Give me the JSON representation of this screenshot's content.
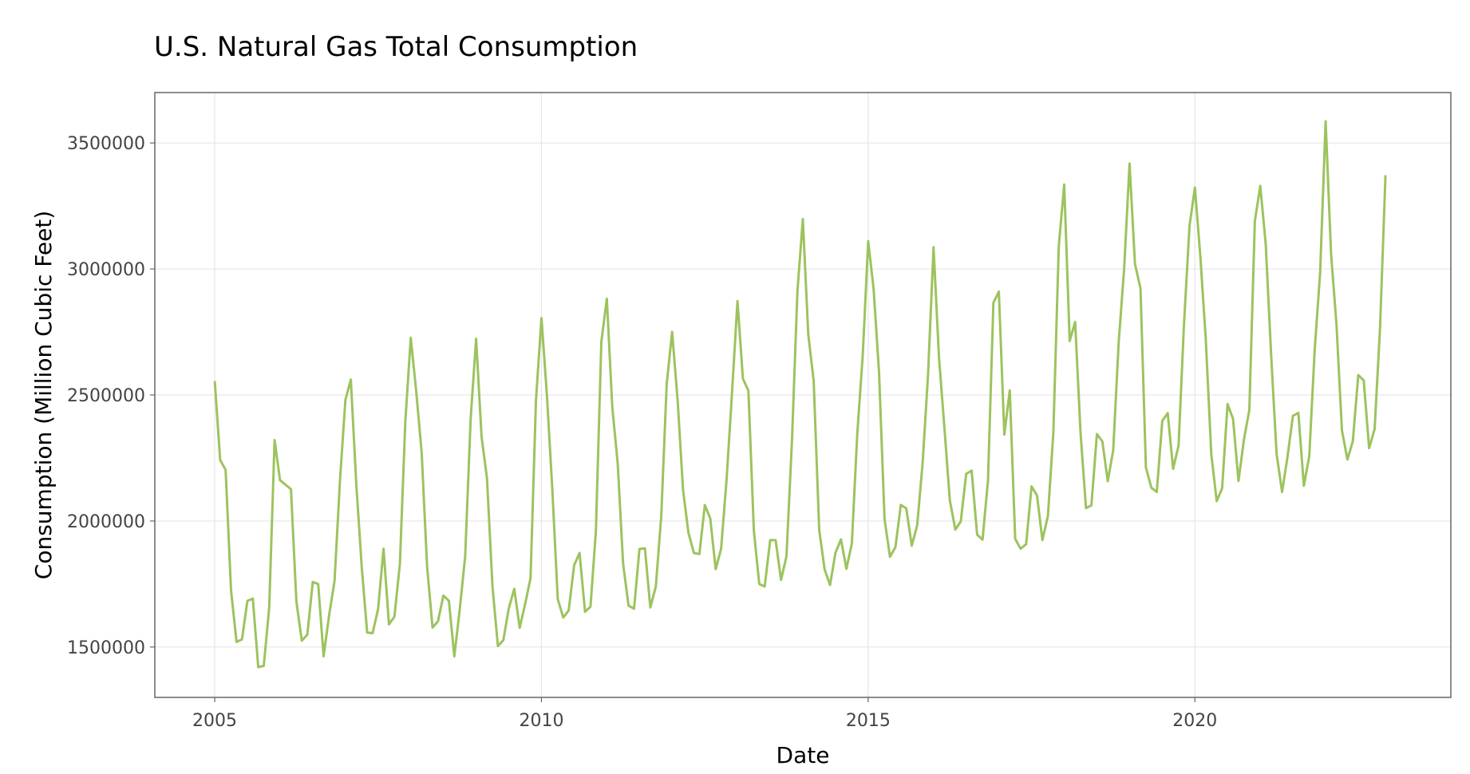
{
  "chart_data": {
    "type": "line",
    "title": "U.S. Natural Gas Total Consumption",
    "xlabel": "Date",
    "ylabel": "Consumption (Million Cubic Feet)",
    "x_ticks": [
      "2005",
      "2010",
      "2015",
      "2020"
    ],
    "y_ticks": [
      "1500000",
      "2000000",
      "2500000",
      "3000000",
      "3500000"
    ],
    "xlim": [
      "2004-02-01",
      "2023-12-01"
    ],
    "ylim": [
      1300000,
      3700000
    ],
    "grid": true,
    "line_color": "#9cc35e",
    "series": [
      {
        "x_start": "2005-01",
        "interval": "monthly",
        "values": [
          2555000,
          2242000,
          2203000,
          1725000,
          1520000,
          1530000,
          1683000,
          1692000,
          1420000,
          1425000,
          1655000,
          2321000,
          2162000,
          2144000,
          2126000,
          1680000,
          1525000,
          1549000,
          1758000,
          1750000,
          1463000,
          1626000,
          1762000,
          2160000,
          2480000,
          2561000,
          2144000,
          1816000,
          1557000,
          1555000,
          1651000,
          1890000,
          1590000,
          1620000,
          1830000,
          2395000,
          2727000,
          2516000,
          2270000,
          1818000,
          1577000,
          1602000,
          1704000,
          1683000,
          1463000,
          1650000,
          1860000,
          2408000,
          2723000,
          2335000,
          2170000,
          1740000,
          1504000,
          1527000,
          1653000,
          1731000,
          1576000,
          1670000,
          1773000,
          2480000,
          2805000,
          2500000,
          2125000,
          1690000,
          1617000,
          1645000,
          1824000,
          1873000,
          1640000,
          1660000,
          1960000,
          2710000,
          2882000,
          2453000,
          2230000,
          1830000,
          1664000,
          1652000,
          1889000,
          1891000,
          1657000,
          1740000,
          2020000,
          2543000,
          2750000,
          2480000,
          2123000,
          1953000,
          1873000,
          1869000,
          2063000,
          2010000,
          1809000,
          1890000,
          2167000,
          2510000,
          2873000,
          2565000,
          2517000,
          1963000,
          1750000,
          1740000,
          1924000,
          1924000,
          1766000,
          1860000,
          2320000,
          2910000,
          3198000,
          2740000,
          2556000,
          1965000,
          1808000,
          1746000,
          1874000,
          1927000,
          1810000,
          1910000,
          2345000,
          2660000,
          3110000,
          2920000,
          2590000,
          2007000,
          1858000,
          1896000,
          2064000,
          2050000,
          1902000,
          1983000,
          2230000,
          2580000,
          3086000,
          2650000,
          2370000,
          2082000,
          1966000,
          1998000,
          2187000,
          2200000,
          1946000,
          1926000,
          2160000,
          2866000,
          2910000,
          2343000,
          2518000,
          1929000,
          1890000,
          1908000,
          2137000,
          2102000,
          1924000,
          2020000,
          2350000,
          3090000,
          3335000,
          2714000,
          2790000,
          2350000,
          2051000,
          2062000,
          2345000,
          2316000,
          2158000,
          2280000,
          2710000,
          3000000,
          3418000,
          3020000,
          2923000,
          2212000,
          2132000,
          2115000,
          2397000,
          2428000,
          2207000,
          2299000,
          2780000,
          3170000,
          3323000,
          3050000,
          2722000,
          2266000,
          2079000,
          2130000,
          2464000,
          2405000,
          2159000,
          2322000,
          2441000,
          3190000,
          3330000,
          3100000,
          2660000,
          2268000,
          2115000,
          2254000,
          2417000,
          2429000,
          2140000,
          2257000,
          2680000,
          2985000,
          3586000,
          3060000,
          2780000,
          2360000,
          2244000,
          2317000,
          2579000,
          2558000,
          2289000,
          2365000,
          2768000,
          3372000
        ]
      }
    ]
  }
}
